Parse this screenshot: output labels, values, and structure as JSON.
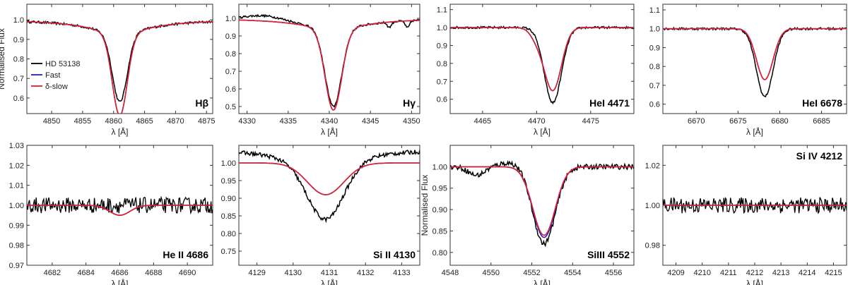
{
  "colors": {
    "obs": "#000000",
    "fast": "#1f1fd6",
    "slow": "#e0202a",
    "frame": "#333333"
  },
  "chart_data": [
    {
      "type": "line",
      "title": "Hβ",
      "xlabel": "λ [Å]",
      "ylabel": "Normalised Flux",
      "xlim": [
        4846,
        4876
      ],
      "ylim": [
        0.52,
        1.08
      ],
      "xticks": [
        4850,
        4855,
        4860,
        4865,
        4870,
        4875
      ],
      "yticks": [
        0.6,
        0.7,
        0.8,
        0.9,
        1.0
      ],
      "legend": {
        "entries": [
          "HD 53138",
          "Fast",
          "δ-slow"
        ],
        "placement": "bottom-left"
      },
      "line": {
        "center": 4861.0,
        "depth_obs": 0.35,
        "depth_fast": 0.42,
        "depth_slow": 0.42,
        "width": 1.2,
        "wing": 0.07,
        "wing_width": 6.0
      },
      "series": [
        {
          "name": "HD 53138"
        },
        {
          "name": "Fast"
        },
        {
          "name": "δ-slow"
        }
      ]
    },
    {
      "type": "line",
      "title": "Hγ",
      "xlabel": "λ [Å]",
      "ylabel": "",
      "xlim": [
        4329,
        4351
      ],
      "ylim": [
        0.46,
        1.08
      ],
      "xticks": [
        4330,
        4335,
        4340,
        4345,
        4350
      ],
      "yticks": [
        0.5,
        0.6,
        0.7,
        0.8,
        0.9,
        1.0
      ],
      "line": {
        "center": 4340.5,
        "depth_obs": 0.44,
        "depth_fast": 0.46,
        "depth_slow": 0.46,
        "width": 1.0,
        "wing": 0.06,
        "wing_width": 5.0
      },
      "series": [
        {
          "name": "HD 53138"
        },
        {
          "name": "Fast"
        },
        {
          "name": "δ-slow"
        }
      ]
    },
    {
      "type": "line",
      "title": "HeI 4471",
      "xlabel": "λ [Å]",
      "ylabel": "",
      "xlim": [
        4462,
        4479
      ],
      "ylim": [
        0.52,
        1.13
      ],
      "xticks": [
        4465,
        4470,
        4475
      ],
      "yticks": [
        0.6,
        0.7,
        0.8,
        0.9,
        1.0,
        1.1
      ],
      "line": {
        "center": 4471.5,
        "depth_obs": 0.42,
        "depth_fast": 0.35,
        "depth_slow": 0.35,
        "width": 0.8,
        "wing": 0.0,
        "wing_width": 1.0
      },
      "series": [
        {
          "name": "HD 53138"
        },
        {
          "name": "Fast"
        },
        {
          "name": "δ-slow"
        }
      ]
    },
    {
      "type": "line",
      "title": "HeI 6678",
      "xlabel": "λ [Å]",
      "ylabel": "",
      "xlim": [
        6666,
        6688
      ],
      "ylim": [
        0.55,
        1.13
      ],
      "xticks": [
        6670,
        6675,
        6680,
        6685
      ],
      "yticks": [
        0.6,
        0.7,
        0.8,
        0.9,
        1.0,
        1.1
      ],
      "line": {
        "center": 6678.2,
        "depth_obs": 0.36,
        "depth_fast": 0.27,
        "depth_slow": 0.27,
        "width": 1.0,
        "wing": 0.0,
        "wing_width": 1.0
      },
      "series": [
        {
          "name": "HD 53138"
        },
        {
          "name": "Fast"
        },
        {
          "name": "δ-slow"
        }
      ]
    },
    {
      "type": "line",
      "title": "He II 4686",
      "xlabel": "λ [Å]",
      "ylabel": "",
      "xlim": [
        4680.5,
        4691.5
      ],
      "ylim": [
        0.97,
        1.03
      ],
      "xticks": [
        4682,
        4684,
        4686,
        4688,
        4690
      ],
      "yticks": [
        0.97,
        0.98,
        0.99,
        1.0,
        1.01,
        1.02,
        1.03
      ],
      "line": {
        "center": 4686.0,
        "depth_obs": 0.0,
        "depth_fast": 0.005,
        "depth_slow": 0.005,
        "width": 0.6,
        "wing": 0.0,
        "wing_width": 1.0,
        "noise": 0.004
      },
      "series": [
        {
          "name": "HD 53138"
        },
        {
          "name": "Fast"
        },
        {
          "name": "δ-slow"
        }
      ]
    },
    {
      "type": "line",
      "title": "Si II 4130",
      "xlabel": "λ [Å]",
      "ylabel": "",
      "xlim": [
        4128.5,
        4133.5
      ],
      "ylim": [
        0.71,
        1.05
      ],
      "xticks": [
        4129,
        4130,
        4131,
        4132,
        4133
      ],
      "yticks": [
        0.75,
        0.8,
        0.85,
        0.9,
        0.95,
        1.0
      ],
      "line": {
        "center": 4130.9,
        "depth_obs": 0.15,
        "depth_fast": 0.09,
        "depth_slow": 0.09,
        "width": 0.5,
        "wing": 0.0,
        "wing_width": 1.0
      },
      "series": [
        {
          "name": "HD 53138"
        },
        {
          "name": "Fast"
        },
        {
          "name": "δ-slow"
        }
      ]
    },
    {
      "type": "line",
      "title": "SiIII 4552",
      "xlabel": "λ [Å]",
      "ylabel": "Normalised Flux",
      "xlim": [
        4548,
        4557
      ],
      "ylim": [
        0.77,
        1.05
      ],
      "xticks": [
        4548,
        4550,
        4552,
        4554,
        4556
      ],
      "yticks": [
        0.8,
        0.85,
        0.9,
        0.95,
        1.0
      ],
      "line": {
        "center": 4552.6,
        "depth_obs": 0.18,
        "depth_fast": 0.165,
        "depth_slow": 0.16,
        "width": 0.55,
        "wing": 0.0,
        "wing_width": 1.0
      },
      "series": [
        {
          "name": "HD 53138"
        },
        {
          "name": "Fast"
        },
        {
          "name": "δ-slow"
        }
      ]
    },
    {
      "type": "line",
      "title": "Si IV 4212",
      "xlabel": "λ [Å]",
      "ylabel": "",
      "xlim": [
        4208.5,
        4215.5
      ],
      "ylim": [
        0.97,
        1.03
      ],
      "xticks": [
        4209,
        4210,
        4211,
        4212,
        4213,
        4214,
        4215
      ],
      "yticks": [
        0.98,
        1.0,
        1.02
      ],
      "line": {
        "center": 4212.0,
        "depth_obs": 0.0,
        "depth_fast": 0.0,
        "depth_slow": 0.0,
        "width": 0.5,
        "wing": 0.0,
        "wing_width": 1.0,
        "noise": 0.004
      },
      "series": [
        {
          "name": "HD 53138"
        },
        {
          "name": "Fast"
        },
        {
          "name": "δ-slow"
        }
      ]
    }
  ]
}
